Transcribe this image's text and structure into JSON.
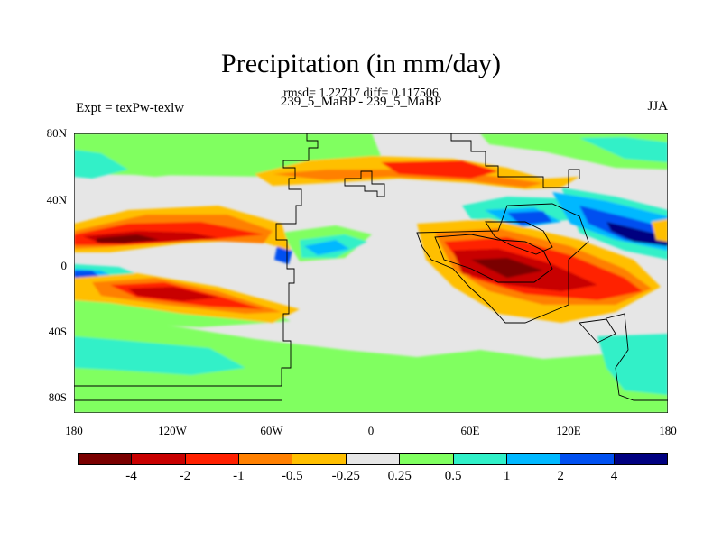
{
  "title": "Precipitation (in mm/day)",
  "stats": "rmsd= 1.22717 diff= 0.117506",
  "subtitle": "239_5_MaBP - 239_5_MaBP",
  "left_label": "Expt = texPw-texlw",
  "right_label": "JJA",
  "axes": {
    "y_ticks": [
      "80N",
      "40N",
      "0",
      "40S",
      "80S"
    ],
    "x_ticks": [
      "180",
      "120W",
      "60W",
      "0",
      "60E",
      "120E",
      "180"
    ]
  },
  "colorbar": {
    "colors": [
      "#7a0000",
      "#c80000",
      "#ff2000",
      "#ff8000",
      "#ffbf00",
      "#e6e6e6",
      "#80ff60",
      "#30f0c8",
      "#00b8ff",
      "#0050f0",
      "#000080"
    ],
    "labels": [
      "-4",
      "-2",
      "-1",
      "-0.5",
      "-0.25",
      "0.25",
      "0.5",
      "1",
      "2",
      "4"
    ]
  }
}
